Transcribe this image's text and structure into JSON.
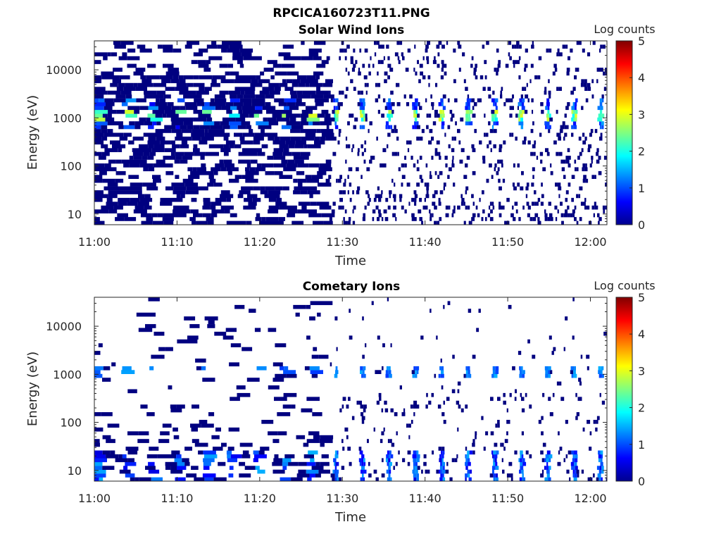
{
  "figure": {
    "title": "RPCICA160723T11.PNG"
  },
  "chart_data": [
    {
      "type": "heatmap",
      "title": "Solar Wind Ions",
      "xlabel": "Time",
      "ylabel": "Energy (eV)",
      "x_ticks": [
        "11:00",
        "11:10",
        "11:20",
        "11:30",
        "11:40",
        "11:50",
        "12:00"
      ],
      "x_range_minutes": [
        0,
        62
      ],
      "y_scale": "log",
      "y_ticks": [
        "10",
        "100",
        "1000",
        "10000"
      ],
      "y_range": [
        6,
        40000
      ],
      "colorbar": {
        "label": "Log counts",
        "ticks": [
          "0",
          "1",
          "2",
          "3",
          "4",
          "5"
        ],
        "range": [
          0,
          5
        ],
        "colormap": "jet"
      },
      "peak_energy_ev": 1200,
      "peak_log_counts": 3,
      "pulse_period_minutes": 3.2
    },
    {
      "type": "heatmap",
      "title": "Cometary Ions",
      "xlabel": "Time",
      "ylabel": "Energy (eV)",
      "x_ticks": [
        "11:00",
        "11:10",
        "11:20",
        "11:30",
        "11:40",
        "11:50",
        "12:00"
      ],
      "x_range_minutes": [
        0,
        62
      ],
      "y_scale": "log",
      "y_ticks": [
        "10",
        "100",
        "1000",
        "10000"
      ],
      "y_range": [
        6,
        40000
      ],
      "colorbar": {
        "label": "Log counts",
        "ticks": [
          "0",
          "1",
          "2",
          "3",
          "4",
          "5"
        ],
        "range": [
          0,
          5
        ],
        "colormap": "jet"
      },
      "peak_energy_ev": 1100,
      "peak_log_counts": 1.5,
      "low_energy_band_ev": [
        6,
        25
      ],
      "low_energy_peak_log_counts": 1.5,
      "pulse_period_minutes": 3.2
    }
  ]
}
